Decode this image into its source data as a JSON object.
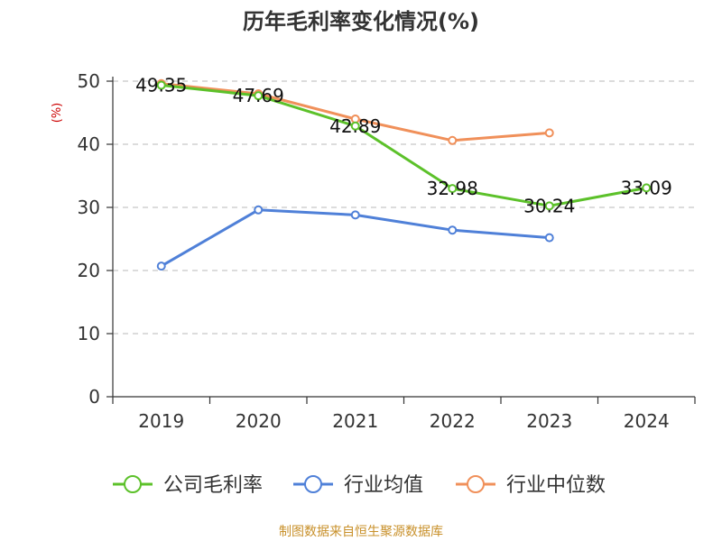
{
  "chart_data": {
    "type": "line",
    "title": "历年毛利率变化情况(%)",
    "ylabel": "(%)",
    "ylim": [
      0,
      50
    ],
    "yticks": [
      0,
      10,
      20,
      30,
      40,
      50
    ],
    "categories": [
      "2019",
      "2020",
      "2021",
      "2022",
      "2023",
      "2024"
    ],
    "grid": true,
    "legend_position": "bottom",
    "series": [
      {
        "name": "公司毛利率",
        "color": "#5cc12a",
        "values": [
          49.35,
          47.69,
          42.89,
          32.98,
          30.24,
          33.09
        ],
        "labels": [
          "49.35",
          "47.69",
          "42.89",
          "32.98",
          "30.24",
          "33.09"
        ]
      },
      {
        "name": "行业均值",
        "color": "#4f80d8",
        "values": [
          20.7,
          29.6,
          28.8,
          26.4,
          25.2,
          null
        ]
      },
      {
        "name": "行业中位数",
        "color": "#f0905a",
        "values": [
          49.6,
          48.0,
          44.0,
          40.6,
          41.8,
          null
        ]
      }
    ]
  },
  "source": "制图数据来自恒生聚源数据库"
}
